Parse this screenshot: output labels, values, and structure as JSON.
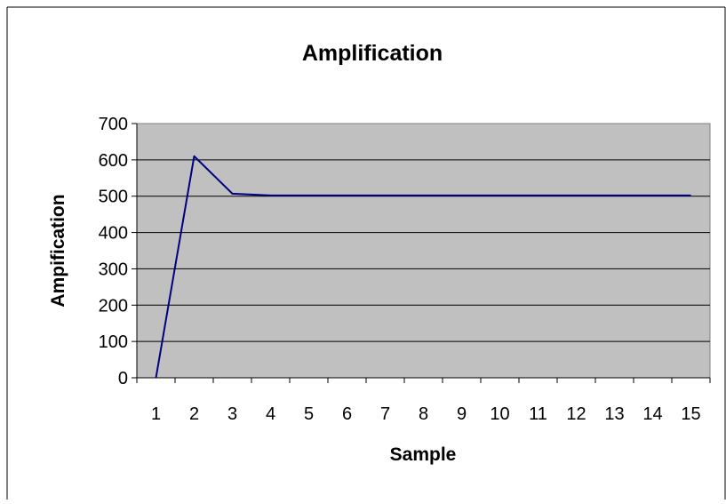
{
  "chart_data": {
    "type": "line",
    "title": "Amplification",
    "xlabel": "Sample",
    "ylabel": "Ampification",
    "categories": [
      "1",
      "2",
      "3",
      "4",
      "5",
      "6",
      "7",
      "8",
      "9",
      "10",
      "11",
      "12",
      "13",
      "14",
      "15"
    ],
    "series": [
      {
        "values": [
          0,
          610,
          507,
          502,
          502,
          502,
          502,
          502,
          502,
          502,
          502,
          502,
          502,
          502,
          502
        ],
        "color": "#000080"
      }
    ],
    "ylim": [
      0,
      700
    ],
    "yticks": [
      0,
      100,
      200,
      300,
      400,
      500,
      600,
      700
    ],
    "grid": "horizontal",
    "plot_background": "#c0c0c0",
    "legend": "none"
  }
}
